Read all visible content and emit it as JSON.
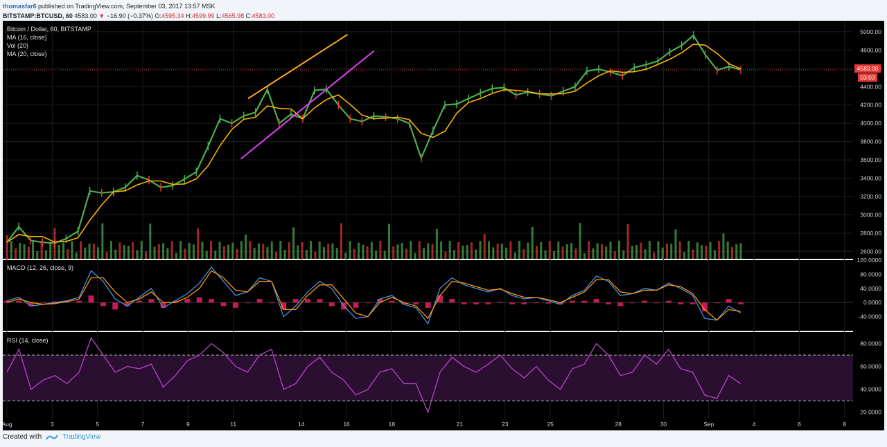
{
  "header": {
    "user": "thomasfar6",
    "published": "published on TradingView.com, September 03, 2017 13:57 MSK",
    "symbol": "BITSTAMP:BTCUSD, 60",
    "last": "4583.00",
    "change_arrow": "▼",
    "change": "−16.90 (−0.37%)",
    "o_label": "O:",
    "o": "4595.34",
    "h_label": "H:",
    "h": "4599.99",
    "l_label": "L:",
    "l": "4565.98",
    "c_label": "C:",
    "c": "4583.00"
  },
  "legend": {
    "line1": "Bitcoin / Dollar, 60, BITSTAMP",
    "line2": "MA (16, close)",
    "line3": "Vol (20)",
    "line4": "MA (20, close)"
  },
  "badges": {
    "price": "4583.00",
    "countdown": "03:03"
  },
  "footer": {
    "created": "Created with",
    "brand": "TradingView"
  },
  "colors": {
    "bg": "#000000",
    "up": "#4caf50",
    "down": "#e53935",
    "ma": "#ffb300",
    "resistance": "#ffa726",
    "support": "#e040fb",
    "rsi": "#b040c0",
    "macd": "#4a90e2",
    "signal": "#ff9800",
    "hist": "#e91e63"
  },
  "chart_data": [
    {
      "type": "line",
      "title": "Bitcoin / Dollar, 60, BITSTAMP",
      "x_ticks": [
        "Aug",
        "3",
        "5",
        "7",
        "9",
        "11",
        "14",
        "16",
        "18",
        "21",
        "23",
        "25",
        "28",
        "30",
        "Sep",
        "4",
        "6",
        "8"
      ],
      "x": [
        0,
        1,
        2,
        3,
        4,
        5,
        6,
        7,
        8,
        9,
        10,
        11,
        12,
        13,
        14,
        15,
        16,
        17,
        18,
        19,
        20,
        21,
        22,
        23,
        24,
        25,
        26,
        27,
        28,
        29,
        30,
        31,
        32,
        33,
        34,
        35,
        36,
        37,
        38,
        39,
        40,
        41,
        42,
        43,
        44,
        45,
        46,
        47,
        48,
        49,
        50,
        51,
        52,
        53,
        54,
        55,
        56,
        57,
        58,
        59,
        60,
        61,
        62,
        63,
        64,
        65,
        66,
        67,
        68,
        69,
        70
      ],
      "price": [
        2700,
        2870,
        2720,
        2700,
        2690,
        2740,
        2820,
        3260,
        3240,
        3250,
        3300,
        3430,
        3380,
        3300,
        3320,
        3390,
        3470,
        3750,
        4050,
        4000,
        4080,
        4120,
        4370,
        4000,
        4100,
        4050,
        4360,
        4370,
        4200,
        4050,
        4020,
        4080,
        4070,
        4050,
        4000,
        3620,
        3920,
        4200,
        4210,
        4270,
        4330,
        4380,
        4390,
        4310,
        4340,
        4320,
        4300,
        4350,
        4400,
        4570,
        4590,
        4560,
        4520,
        4610,
        4640,
        4680,
        4780,
        4850,
        4960,
        4750,
        4580,
        4620,
        4583
      ],
      "yticks": [
        2600,
        2800,
        3000,
        3200,
        3400,
        3600,
        3800,
        4000,
        4200,
        4400,
        4600,
        4800,
        5000
      ],
      "ylim": [
        2520,
        5120
      ],
      "series": [
        {
          "name": "MA (16, close)"
        },
        {
          "name": "Vol (20)"
        },
        {
          "name": "MA (20, close)"
        }
      ],
      "trendlines": {
        "resistance": [
          [
            23.0,
            4270
          ],
          [
            32.5,
            4970
          ]
        ],
        "support": [
          [
            22.3,
            3610
          ],
          [
            35.0,
            4790
          ]
        ]
      },
      "last_price_label": "4583.00"
    },
    {
      "type": "line",
      "title": "MACD (12, 26, close, 9)",
      "yticks": [
        -40,
        0,
        40,
        80,
        120
      ],
      "ytick_labels": [
        "-40.0000",
        "0.0000",
        "40.0000",
        "80.0000",
        "120.0000"
      ],
      "ylim": [
        -80,
        120
      ],
      "macd": [
        5,
        15,
        -10,
        -5,
        0,
        5,
        15,
        90,
        60,
        10,
        -10,
        15,
        40,
        -15,
        5,
        25,
        55,
        100,
        60,
        20,
        30,
        70,
        60,
        -40,
        -10,
        30,
        60,
        40,
        -10,
        -45,
        -40,
        10,
        20,
        -5,
        -15,
        -60,
        40,
        70,
        50,
        40,
        30,
        40,
        20,
        10,
        15,
        5,
        -5,
        20,
        35,
        75,
        60,
        20,
        25,
        40,
        35,
        55,
        40,
        20,
        -45,
        -50,
        -10,
        -30
      ],
      "signal": [
        0,
        10,
        0,
        -5,
        -3,
        3,
        10,
        70,
        70,
        30,
        0,
        10,
        30,
        0,
        0,
        15,
        40,
        90,
        70,
        35,
        30,
        60,
        60,
        -20,
        -20,
        20,
        50,
        50,
        10,
        -30,
        -40,
        0,
        15,
        0,
        -10,
        -45,
        20,
        60,
        55,
        45,
        35,
        38,
        25,
        15,
        15,
        8,
        0,
        15,
        30,
        65,
        65,
        30,
        25,
        35,
        35,
        50,
        45,
        25,
        -20,
        -50,
        -20,
        -25
      ]
    },
    {
      "type": "line",
      "title": "RSI (14, close)",
      "yticks": [
        20,
        40,
        60,
        80
      ],
      "ytick_labels": [
        "20.0000",
        "40.0000",
        "60.0000",
        "80.0000"
      ],
      "ylim": [
        15,
        90
      ],
      "bands": [
        30,
        70
      ],
      "rsi": [
        55,
        75,
        40,
        48,
        52,
        45,
        55,
        85,
        70,
        55,
        60,
        58,
        62,
        42,
        52,
        65,
        70,
        80,
        72,
        60,
        55,
        70,
        75,
        40,
        45,
        60,
        68,
        55,
        48,
        35,
        40,
        55,
        58,
        45,
        45,
        20,
        55,
        68,
        60,
        55,
        62,
        70,
        58,
        50,
        60,
        48,
        40,
        58,
        62,
        80,
        70,
        52,
        55,
        70,
        62,
        75,
        58,
        55,
        35,
        32,
        52,
        45
      ]
    }
  ]
}
